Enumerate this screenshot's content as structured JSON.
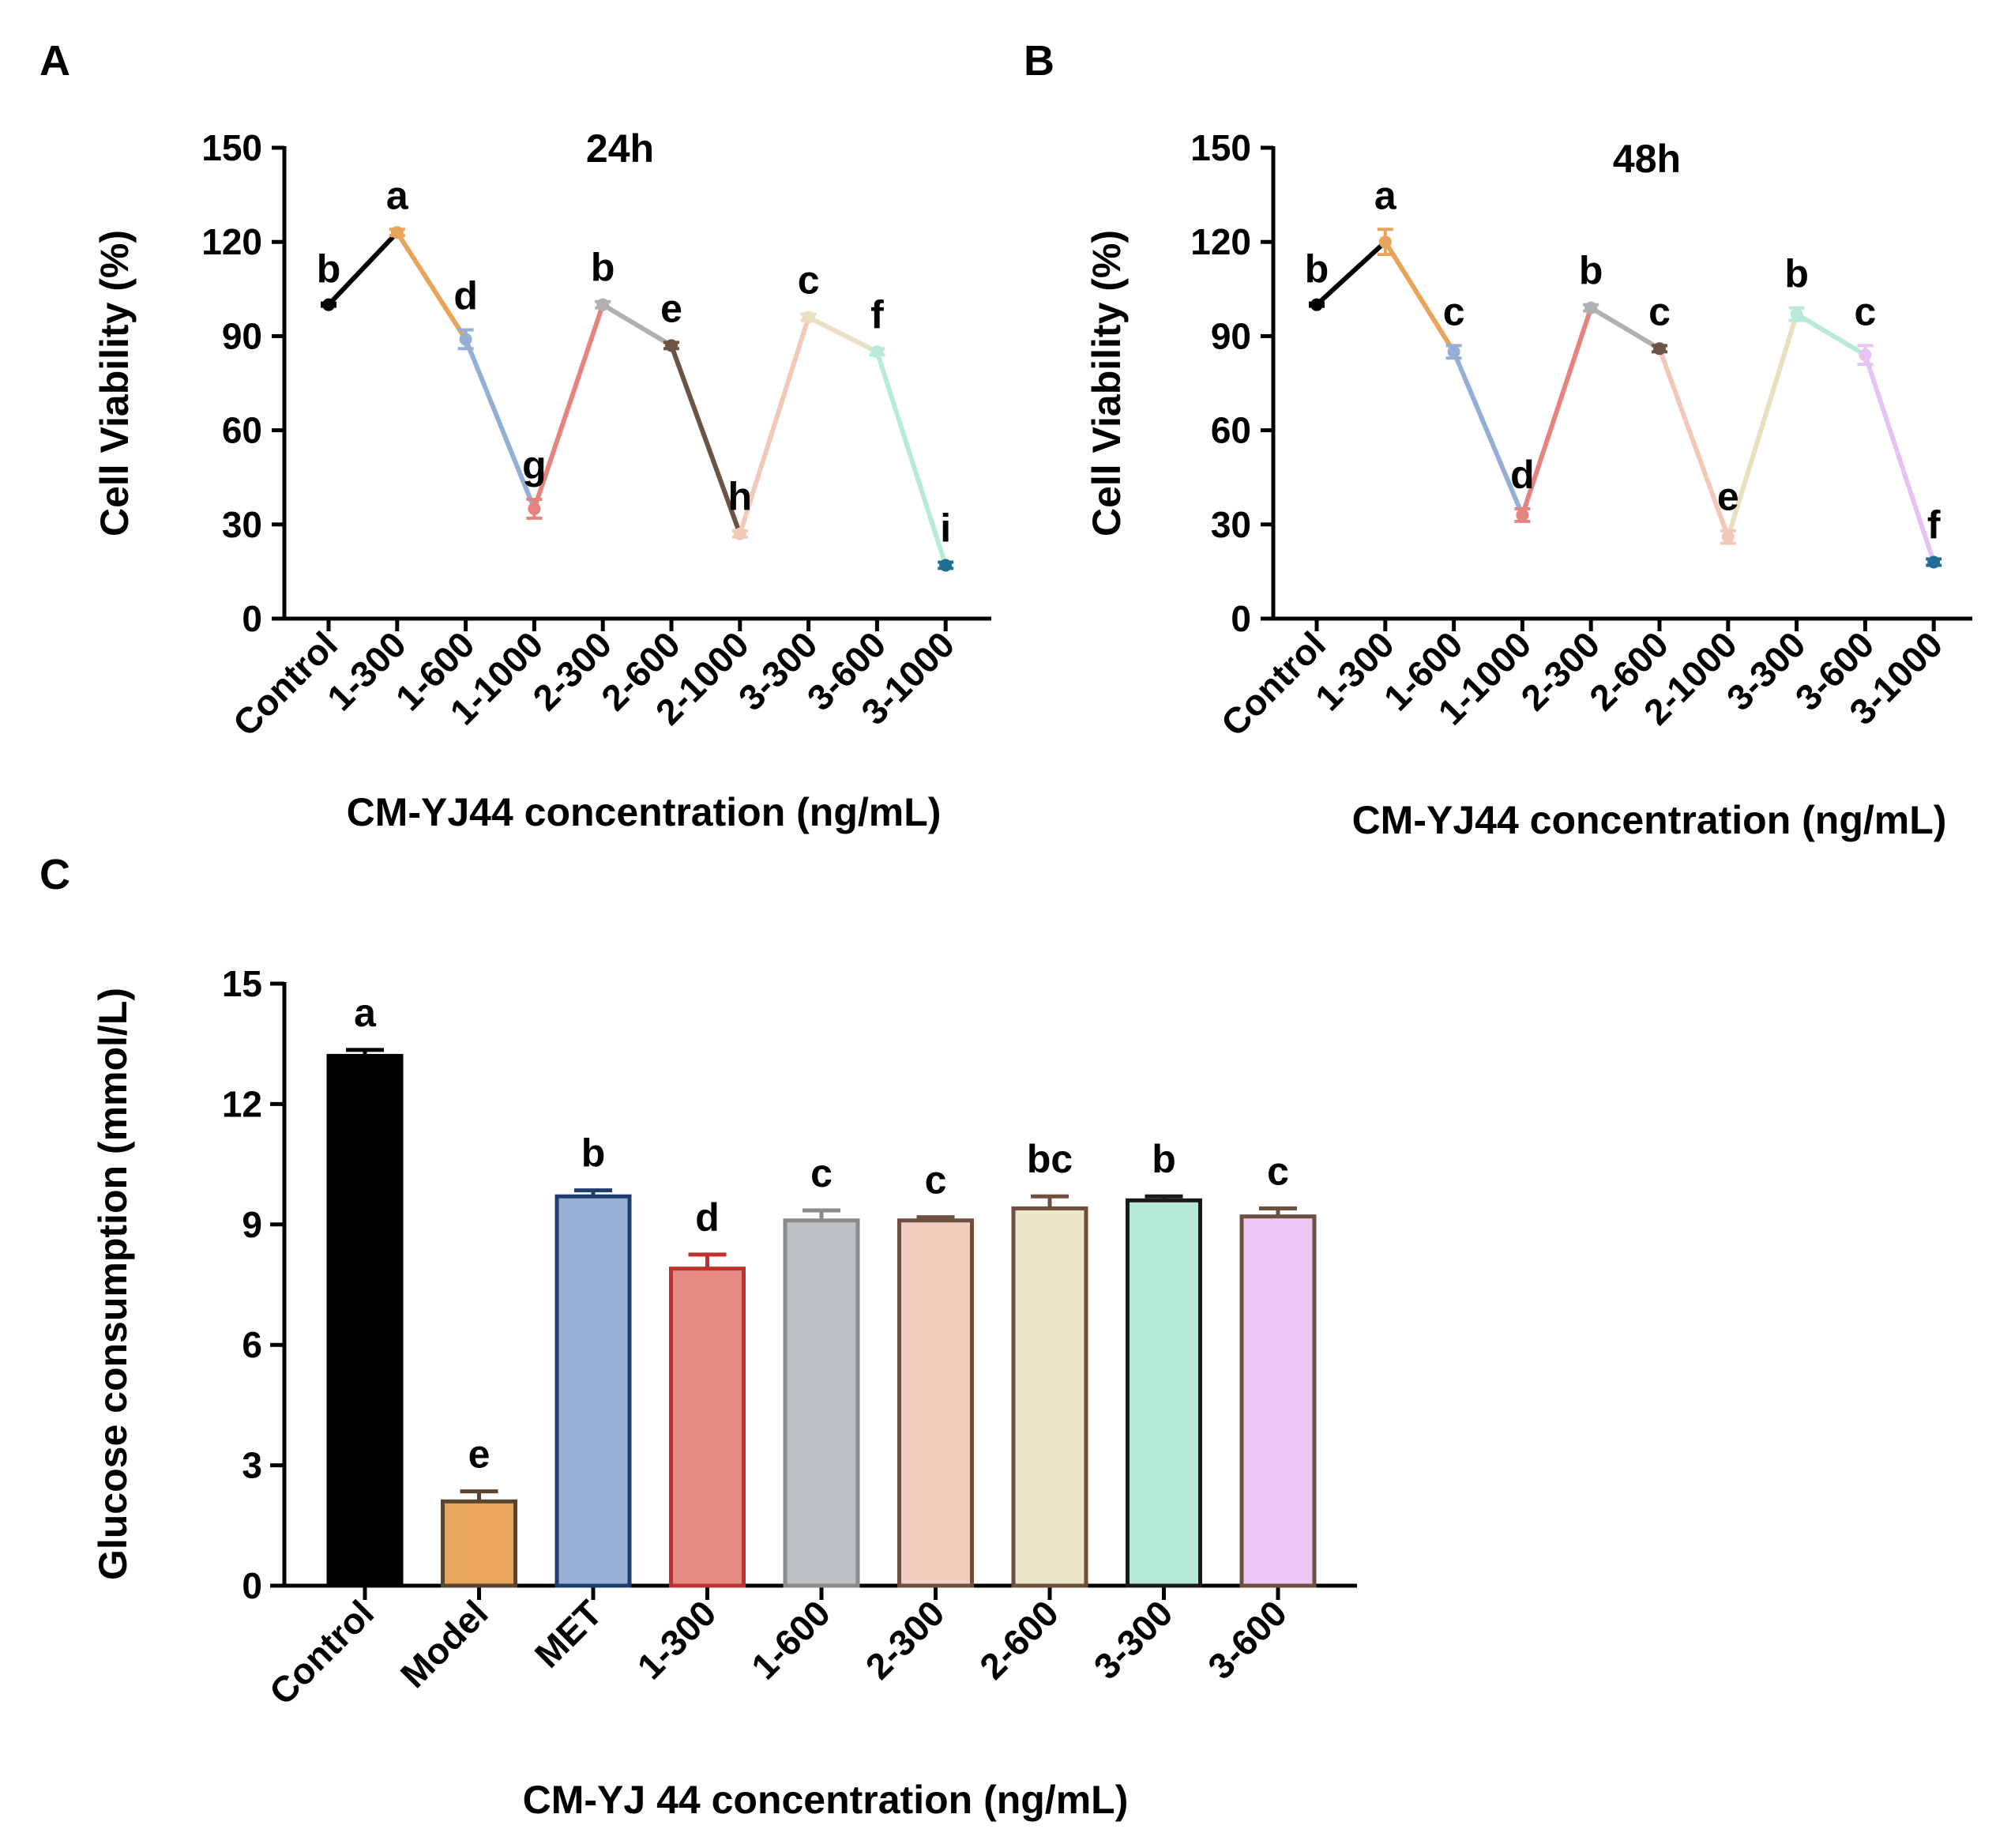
{
  "chart_data": [
    {
      "panel": "A",
      "type": "line",
      "title": "24h",
      "xlabel": "CM-YJ44 concentration (ng/mL)",
      "ylabel": "Cell Viability (%)",
      "ylim": [
        0,
        150
      ],
      "yticks": [
        0,
        30,
        60,
        90,
        120,
        150
      ],
      "categories": [
        "Control",
        "1-300",
        "1-600",
        "1-1000",
        "2-300",
        "2-600",
        "2-1000",
        "3-300",
        "3-600",
        "3-1000"
      ],
      "values": [
        100,
        123,
        89,
        35,
        100,
        87,
        27,
        96,
        85,
        17
      ],
      "errors": [
        0.5,
        1,
        3,
        3,
        1,
        1,
        1,
        1,
        1,
        1
      ],
      "letters": [
        "b",
        "a",
        "d",
        "g",
        "b",
        "e",
        "h",
        "c",
        "f",
        "i"
      ],
      "colors": [
        "#000000",
        "#E8A45A",
        "#95AFD4",
        "#E5837F",
        "#B0B0B0",
        "#6B5345",
        "#F2C9B8",
        "#E8E0C0",
        "#B8EAD8",
        "#E8C2F2"
      ],
      "marker_colors": [
        "#000000",
        "#E8A45A",
        "#95AFD4",
        "#E5837F",
        "#B0B0B0",
        "#6B5345",
        "#F2C9B8",
        "#E8E0C0",
        "#B8EAD8",
        "#1F6E96"
      ]
    },
    {
      "panel": "B",
      "type": "line",
      "title": "48h",
      "xlabel": "CM-YJ44 concentration (ng/mL)",
      "ylabel": "Cell Viability (%)",
      "ylim": [
        0,
        150
      ],
      "yticks": [
        0,
        30,
        60,
        90,
        120,
        150
      ],
      "categories": [
        "Control",
        "1-300",
        "1-600",
        "1-1000",
        "2-300",
        "2-600",
        "2-1000",
        "3-300",
        "3-600",
        "3-1000"
      ],
      "values": [
        100,
        120,
        85,
        33,
        99,
        86,
        26,
        97,
        84,
        18
      ],
      "errors": [
        0.5,
        4,
        2,
        2,
        1,
        1,
        2,
        2,
        3,
        1
      ],
      "letters": [
        "b",
        "a",
        "c",
        "d",
        "b",
        "c",
        "e",
        "b",
        "c",
        "f"
      ],
      "colors": [
        "#000000",
        "#E8A45A",
        "#95AFD4",
        "#E5837F",
        "#B0B0B0",
        "#F2C9B8",
        "#E8E0C0",
        "#B8EAD8",
        "#E8C2F2",
        "#E8C2F2"
      ],
      "marker_colors": [
        "#000000",
        "#E8A45A",
        "#95AFD4",
        "#E5837F",
        "#B0B0B0",
        "#6B5345",
        "#F2C9B8",
        "#B8EAD8",
        "#E8C2F2",
        "#1F6E96"
      ]
    },
    {
      "panel": "C",
      "type": "bar",
      "title": "",
      "xlabel": "CM-YJ 44 concentration (ng/mL)",
      "ylabel": "Glucose consumption  (mmol/L)",
      "ylim": [
        0,
        15
      ],
      "yticks": [
        0,
        3,
        6,
        9,
        12,
        15
      ],
      "categories": [
        "Control",
        "Model",
        "MET",
        "1-300",
        "1-600",
        "2-300",
        "2-600",
        "3-300",
        "3-600"
      ],
      "values": [
        13.2,
        2.1,
        9.7,
        7.9,
        9.1,
        9.1,
        9.4,
        9.6,
        9.2
      ],
      "errors": [
        0.15,
        0.25,
        0.15,
        0.35,
        0.25,
        0.08,
        0.3,
        0.1,
        0.2
      ],
      "letters": [
        "a",
        "e",
        "b",
        "d",
        "c",
        "c",
        "bc",
        "b",
        "c"
      ],
      "fill_colors": [
        "#000000",
        "#E8A55C",
        "#97B0D3",
        "#E68B84",
        "#BDC0C3",
        "#F2CDBE",
        "#EBE5CA",
        "#B5E8D6",
        "#EAC7F5"
      ],
      "edge_colors": [
        "#000000",
        "#5A4630",
        "#1F3C6E",
        "#C0302E",
        "#8A8A8A",
        "#6E5040",
        "#6E5040",
        "#1A1A1A",
        "#6E5040"
      ]
    }
  ]
}
